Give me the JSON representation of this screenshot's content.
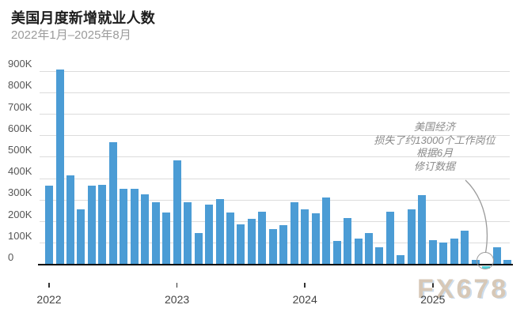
{
  "header": {
    "title": "美国月度新增就业人数",
    "subtitle": "2022年1月–2025年8月"
  },
  "watermark": "FX678",
  "annotation": {
    "lines": [
      "美国经济",
      "损失了约13000个工作岗位",
      "根据6月",
      "修订数据"
    ],
    "points_to_month": "2025-06"
  },
  "chart_data": {
    "type": "bar",
    "title": "美国月度新增就业人数",
    "subtitle": "2022年1月–2025年8月",
    "value_unit": "thousands of jobs",
    "x": [
      "2022-01",
      "2022-02",
      "2022-03",
      "2022-04",
      "2022-05",
      "2022-06",
      "2022-07",
      "2022-08",
      "2022-09",
      "2022-10",
      "2022-11",
      "2022-12",
      "2023-01",
      "2023-02",
      "2023-03",
      "2023-04",
      "2023-05",
      "2023-06",
      "2023-07",
      "2023-08",
      "2023-09",
      "2023-10",
      "2023-11",
      "2023-12",
      "2024-01",
      "2024-02",
      "2024-03",
      "2024-04",
      "2024-05",
      "2024-06",
      "2024-07",
      "2024-08",
      "2024-09",
      "2024-10",
      "2024-11",
      "2024-12",
      "2025-01",
      "2025-02",
      "2025-03",
      "2025-04",
      "2025-05",
      "2025-06",
      "2025-07",
      "2025-08"
    ],
    "values_k": [
      364,
      904,
      414,
      254,
      364,
      370,
      568,
      352,
      350,
      324,
      290,
      239,
      482,
      287,
      146,
      278,
      303,
      240,
      184,
      210,
      246,
      165,
      182,
      290,
      256,
      236,
      310,
      108,
      216,
      118,
      144,
      78,
      246,
      44,
      256,
      320,
      111,
      102,
      120,
      158,
      19,
      -13,
      79,
      22
    ],
    "highlight": {
      "month": "2025-06",
      "value_k": -13,
      "color": "#4FD0D8"
    },
    "bar_color": "#4B9CD5",
    "ytick_labels": [
      "0",
      "100K",
      "200K",
      "300K",
      "400K",
      "500K",
      "600K",
      "700K",
      "800K",
      "900K"
    ],
    "ytick_values_k": [
      0,
      100,
      200,
      300,
      400,
      500,
      600,
      700,
      800,
      900
    ],
    "xtick_labels": [
      "2022",
      "2023",
      "2024",
      "2025"
    ],
    "xtick_month_indices": [
      0,
      12,
      24,
      36
    ],
    "ylim_k": [
      -20,
      900
    ],
    "grid": "horizontal",
    "legend": "none"
  }
}
